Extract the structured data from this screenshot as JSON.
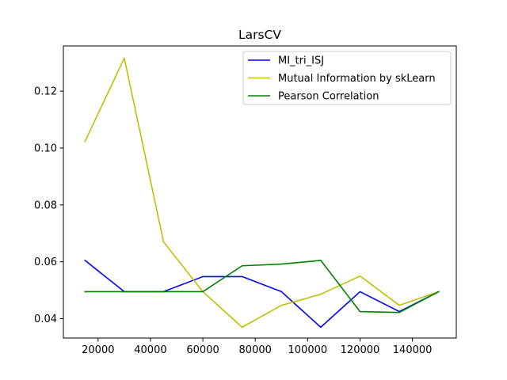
{
  "chart_data": {
    "type": "line",
    "title": "LarsCV",
    "xlabel": "",
    "ylabel": "",
    "x": [
      15000,
      30000,
      45000,
      60000,
      75000,
      90000,
      105000,
      120000,
      135000,
      150000
    ],
    "xlim": [
      6750,
      156750
    ],
    "ylim": [
      0.0332,
      0.1359
    ],
    "xticks": [
      20000,
      40000,
      60000,
      80000,
      100000,
      120000,
      140000
    ],
    "yticks": [
      0.04,
      0.06,
      0.08,
      0.1,
      0.12
    ],
    "xtick_labels": [
      "20000",
      "40000",
      "60000",
      "80000",
      "100000",
      "120000",
      "140000"
    ],
    "ytick_labels": [
      "0.04",
      "0.06",
      "0.08",
      "0.10",
      "0.12"
    ],
    "grid": false,
    "legend_position": "top-right",
    "series": [
      {
        "name": "MI_tri_ISJ",
        "color": "#0000ff",
        "values": [
          0.0605,
          0.0495,
          0.0495,
          0.0548,
          0.0548,
          0.0495,
          0.037,
          0.0495,
          0.0425,
          0.0495
        ]
      },
      {
        "name": "Mutual Information by skLearn",
        "color": "#bfbf00",
        "values": [
          0.1023,
          0.1316,
          0.067,
          0.0495,
          0.037,
          0.0447,
          0.0486,
          0.055,
          0.0447,
          0.0495
        ]
      },
      {
        "name": "Pearson Correlation",
        "color": "#008000",
        "values": [
          0.0495,
          0.0495,
          0.0495,
          0.0495,
          0.0586,
          0.0592,
          0.0605,
          0.0425,
          0.0422,
          0.0495
        ]
      }
    ]
  }
}
